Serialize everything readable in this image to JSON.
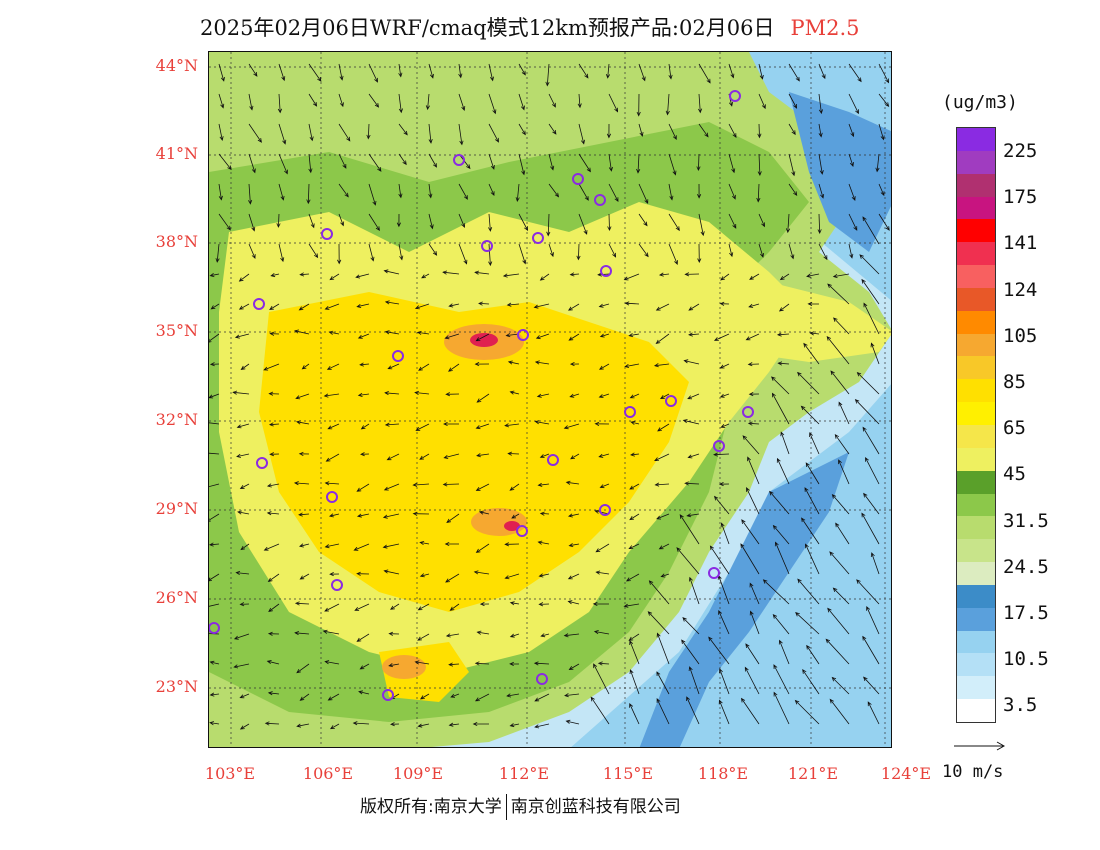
{
  "title": {
    "main": "2025年02月06日WRF/cmaq模式12km预报产品:02月06日",
    "pollutant": "PM2.5"
  },
  "axes": {
    "lat_labels": [
      "44°N",
      "41°N",
      "38°N",
      "35°N",
      "32°N",
      "29°N",
      "26°N",
      "23°N"
    ],
    "lon_labels": [
      "103°E",
      "106°E",
      "109°E",
      "112°E",
      "115°E",
      "118°E",
      "121°E",
      "124°E"
    ]
  },
  "legend": {
    "unit": "(ug/m3)",
    "labels": [
      "225",
      "175",
      "141",
      "124",
      "105",
      "85",
      "65",
      "45",
      "31.5",
      "24.5",
      "17.5",
      "10.5",
      "3.5"
    ],
    "colors": [
      "#8a2be2",
      "#a03cc0",
      "#b03070",
      "#c81480",
      "#ff0000",
      "#f03050",
      "#f86060",
      "#e85828",
      "#ff8a00",
      "#f6a830",
      "#f8c828",
      "#ffe000",
      "#fff000",
      "#f5e64a",
      "#eef060",
      "#5aa02a",
      "#8cc84a",
      "#b8dc6e",
      "#c8e48a",
      "#dcecc0",
      "#3c8cc8",
      "#5aa0dc",
      "#96d2f0",
      "#b4e0f6",
      "#d2eefa",
      "#ffffff"
    ]
  },
  "wind_reference": {
    "label": "10 m/s"
  },
  "copyright": {
    "left": "版权所有:南京大学",
    "right": "南京创蓝科技有限公司"
  },
  "map": {
    "colors": {
      "ocean_far": "#c4e6f6",
      "ocean_near": "#96d2f0",
      "coast_band": "#5aa0dc",
      "low_land": "#b8dc6e",
      "mid_land": "#8cc84a",
      "plain": "#eef060",
      "high": "#ffe000",
      "hotspot": "#f6a830",
      "peak": "#e02050",
      "city_marker": "#8a2be2"
    },
    "city_count": 24
  }
}
